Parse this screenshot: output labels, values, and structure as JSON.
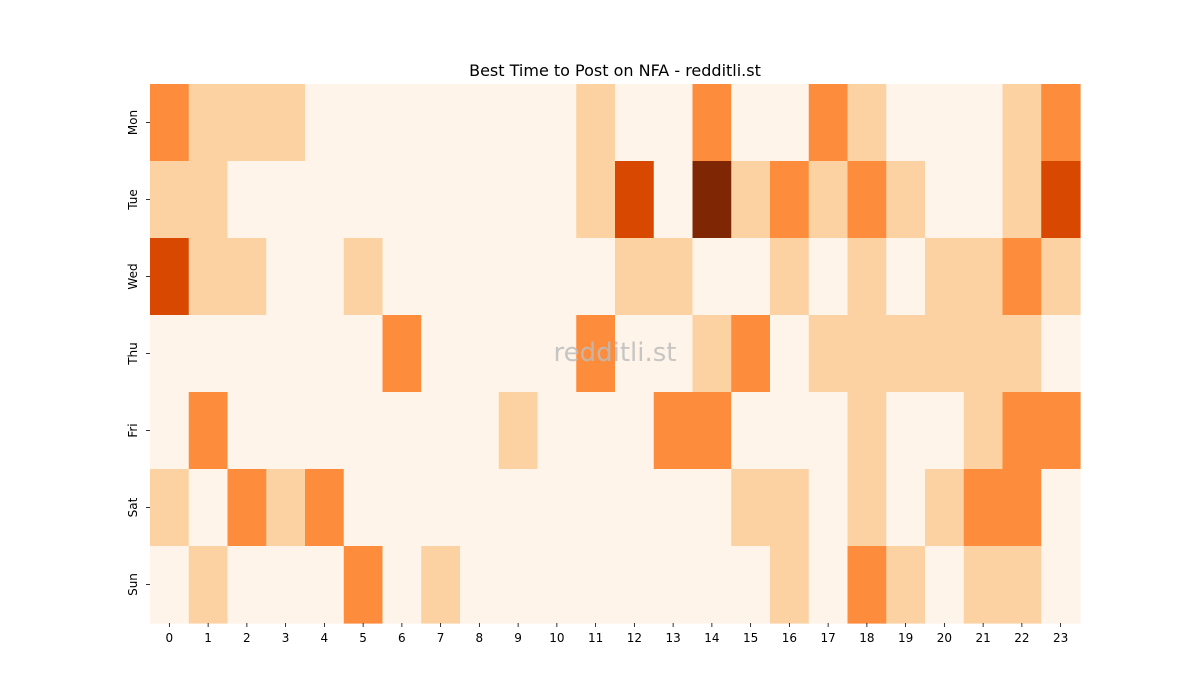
{
  "chart_data": {
    "type": "heatmap",
    "title": "Best Time to Post on NFA - redditli.st",
    "watermark": "redditli.st",
    "x_categories": [
      "0",
      "1",
      "2",
      "3",
      "4",
      "5",
      "6",
      "7",
      "8",
      "9",
      "10",
      "11",
      "12",
      "13",
      "14",
      "15",
      "16",
      "17",
      "18",
      "19",
      "20",
      "21",
      "22",
      "23"
    ],
    "y_categories": [
      "Mon",
      "Tue",
      "Wed",
      "Thu",
      "Fri",
      "Sat",
      "Sun"
    ],
    "levels": [
      [
        2,
        1,
        1,
        1,
        0,
        0,
        0,
        0,
        0,
        0,
        0,
        1,
        0,
        0,
        2,
        0,
        0,
        2,
        1,
        0,
        0,
        0,
        1,
        2
      ],
      [
        1,
        1,
        0,
        0,
        0,
        0,
        0,
        0,
        0,
        0,
        0,
        1,
        3,
        0,
        4,
        1,
        2,
        1,
        2,
        1,
        0,
        0,
        1,
        3
      ],
      [
        3,
        1,
        1,
        0,
        0,
        1,
        0,
        0,
        0,
        0,
        0,
        0,
        1,
        1,
        0,
        0,
        1,
        0,
        1,
        0,
        1,
        1,
        2,
        1
      ],
      [
        0,
        0,
        0,
        0,
        0,
        0,
        2,
        0,
        0,
        0,
        0,
        2,
        0,
        0,
        1,
        2,
        0,
        1,
        1,
        1,
        1,
        1,
        1,
        0
      ],
      [
        0,
        2,
        0,
        0,
        0,
        0,
        0,
        0,
        0,
        1,
        0,
        0,
        0,
        2,
        2,
        0,
        0,
        0,
        1,
        0,
        0,
        1,
        2,
        2
      ],
      [
        1,
        0,
        2,
        1,
        2,
        0,
        0,
        0,
        0,
        0,
        0,
        0,
        0,
        0,
        0,
        1,
        1,
        0,
        1,
        0,
        1,
        2,
        2,
        0
      ],
      [
        0,
        1,
        0,
        0,
        0,
        2,
        0,
        1,
        0,
        0,
        0,
        0,
        0,
        0,
        0,
        0,
        1,
        0,
        2,
        1,
        0,
        1,
        1,
        0
      ]
    ],
    "colorscale": [
      "#fff4e9",
      "#fcd2a2",
      "#fd8d3c",
      "#d94801",
      "#7f2704"
    ]
  }
}
